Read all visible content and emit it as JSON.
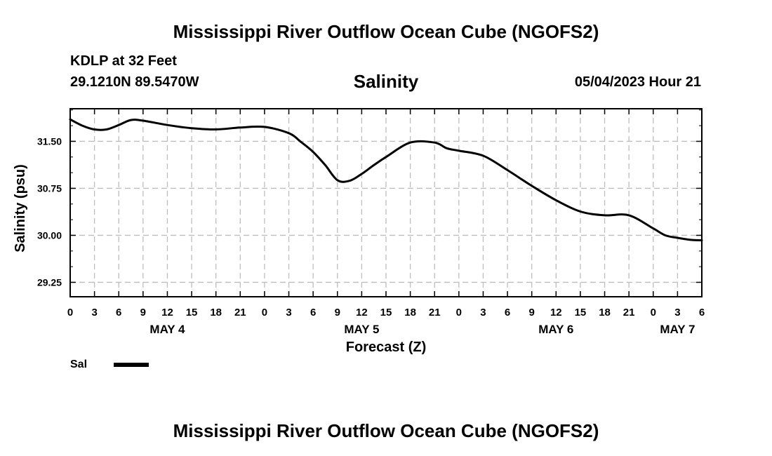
{
  "header": {
    "title": "Mississippi River Outflow Ocean Cube (NGOFS2)",
    "station": "KDLP at 32 Feet",
    "coords": "29.1210N  89.5470W",
    "subtitle": "Salinity",
    "datetime": "05/04/2023 Hour 21"
  },
  "footer": {
    "title": "Mississippi River Outflow Ocean Cube (NGOFS2)"
  },
  "legend": {
    "label": "Sal",
    "color": "#000000"
  },
  "chart_data": {
    "type": "line",
    "title": "Salinity",
    "xlabel": "Forecast (Z)",
    "ylabel": "Salinity (psu)",
    "x_unit": "hours since May 4 00Z",
    "xlim": [
      0,
      78
    ],
    "ylim": [
      29.02,
      32.02
    ],
    "yticks": [
      29.25,
      30.0,
      30.75,
      31.5
    ],
    "ytick_labels": [
      "29.25",
      "30.00",
      "30.75",
      "31.50"
    ],
    "xticks": [
      0,
      3,
      6,
      9,
      12,
      15,
      18,
      21,
      24,
      27,
      30,
      33,
      36,
      39,
      42,
      45,
      48,
      51,
      54,
      57,
      60,
      63,
      66,
      69,
      72,
      75,
      78
    ],
    "xtick_labels": [
      "0",
      "3",
      "6",
      "9",
      "12",
      "15",
      "18",
      "21",
      "0",
      "3",
      "6",
      "9",
      "12",
      "15",
      "18",
      "21",
      "0",
      "3",
      "6",
      "9",
      "12",
      "15",
      "18",
      "21",
      "0",
      "3",
      "6"
    ],
    "day_labels": [
      {
        "x": 12,
        "label": "MAY 4"
      },
      {
        "x": 36,
        "label": "MAY 5"
      },
      {
        "x": 60,
        "label": "MAY 6"
      },
      {
        "x": 75,
        "label": "MAY 7"
      }
    ],
    "grid": true,
    "series": [
      {
        "name": "Sal",
        "color": "#000000",
        "x": [
          0,
          1.5,
          3,
          4.5,
          6,
          7.5,
          9,
          12,
          15,
          18,
          21,
          24,
          27,
          28.5,
          30,
          31.5,
          33,
          34.5,
          36,
          37.5,
          39,
          42,
          45,
          46.5,
          48,
          51,
          54,
          57,
          60,
          63,
          66,
          69,
          72,
          73.5,
          75,
          76.5,
          78
        ],
        "y": [
          31.85,
          31.75,
          31.69,
          31.69,
          31.76,
          31.84,
          31.83,
          31.76,
          31.71,
          31.69,
          31.72,
          31.73,
          31.63,
          31.49,
          31.33,
          31.12,
          30.88,
          30.87,
          30.98,
          31.12,
          31.25,
          31.48,
          31.48,
          31.39,
          31.35,
          31.27,
          31.04,
          30.79,
          30.56,
          30.38,
          30.32,
          30.32,
          30.11,
          30.0,
          29.96,
          29.93,
          29.92
        ]
      }
    ]
  }
}
